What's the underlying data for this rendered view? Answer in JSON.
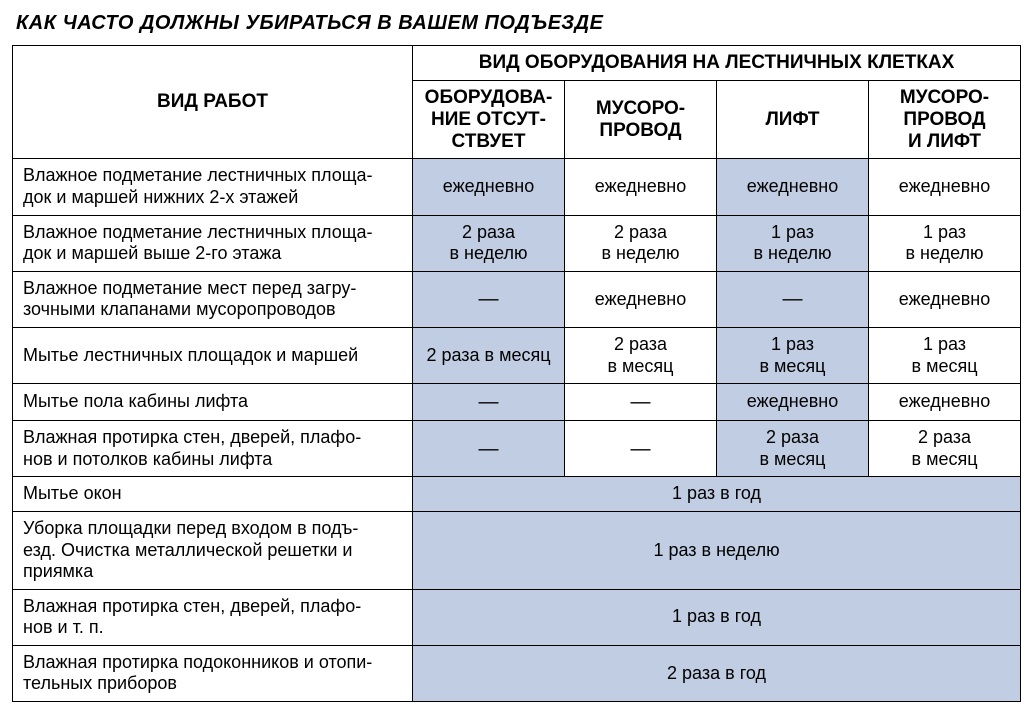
{
  "title": "КАК ЧАСТО ДОЛЖНЫ УБИРАТЬСЯ В ВАШЕМ ПОДЪЕЗДЕ",
  "header": {
    "works": "ВИД РАБОТ",
    "equipment_group": "ВИД ОБОРУДОВАНИЯ НА ЛЕСТНИЧНЫХ КЛЕТКАХ",
    "cols": {
      "c1": "ОБОРУДОВА-\nНИЕ ОТСУТ-\nСТВУЕТ",
      "c2": "МУСОРО-\nПРОВОД",
      "c3": "ЛИФТ",
      "c4": "МУСОРО-\nПРОВОД\nИ ЛИФТ"
    }
  },
  "rows": [
    {
      "label": "Влажное подметание лестничных площа-\nдок и маршей нижних 2-х этажей",
      "v": [
        "ежедневно",
        "ежедневно",
        "ежедневно",
        "ежедневно"
      ]
    },
    {
      "label": "Влажное подметание лестничных площа-\nдок и маршей выше 2-го этажа",
      "v": [
        "2 раза\nв неделю",
        "2 раза\nв неделю",
        "1 раз\nв неделю",
        "1 раз\nв неделю"
      ]
    },
    {
      "label": "Влажное подметание мест перед загру-\nзочными клапанами мусоропроводов",
      "v": [
        "—",
        "ежедневно",
        "—",
        "ежедневно"
      ]
    },
    {
      "label": "Мытье лестничных площадок и маршей",
      "v": [
        "2 раза в месяц",
        "2 раза\nв месяц",
        "1 раз\nв месяц",
        "1 раз\nв месяц"
      ]
    },
    {
      "label": "Мытье пола кабины лифта",
      "v": [
        "—",
        "—",
        "ежедневно",
        "ежедневно"
      ]
    },
    {
      "label": "Влажная протирка стен, дверей, плафо-\nнов и потолков кабины лифта",
      "v": [
        "—",
        "—",
        "2 раза\nв месяц",
        "2 раза\nв месяц"
      ]
    }
  ],
  "spanned": [
    {
      "label": "Мытье окон",
      "value": "1 раз в год"
    },
    {
      "label": "Уборка площадки перед входом в подъ-\nезд. Очистка металлической решетки и\nприямка",
      "value": "1 раз в неделю"
    },
    {
      "label": "Влажная протирка стен, дверей, плафо-\nнов и т. п.",
      "value": "1 раз в год"
    },
    {
      "label": "Влажная протирка подоконников и отопи-\nтельных приборов",
      "value": "2 раза в год"
    }
  ],
  "style": {
    "row_band_color": "#c0cde2",
    "border_color": "#000000",
    "text_color": "#000000",
    "title_fontsize": 20,
    "header_fontsize": 19,
    "body_fontsize": 18
  }
}
